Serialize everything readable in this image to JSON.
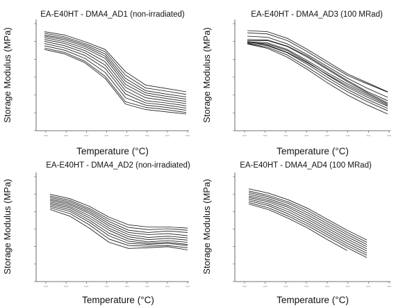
{
  "chart_data": [
    {
      "type": "line",
      "title": "EA-E40HT - DMA4_AD1 (non-irradiated)",
      "xlabel": "Temperature (°C)",
      "ylabel": "Storage Modulus (MPa)",
      "x_ticks_count": 8,
      "y_ticks_count": 7,
      "grid": false,
      "style": {
        "line_color": "#1a1a1a"
      },
      "x": [
        1,
        2,
        3,
        4,
        5,
        6,
        7,
        8
      ],
      "series": [
        {
          "values": [
            5.65,
            5.5,
            5.2,
            4.85,
            3.85,
            3.25,
            3.1,
            2.95
          ]
        },
        {
          "values": [
            5.58,
            5.42,
            5.12,
            4.75,
            3.7,
            3.12,
            2.98,
            2.83
          ]
        },
        {
          "values": [
            5.5,
            5.35,
            5.05,
            4.65,
            3.55,
            3.0,
            2.85,
            2.72
          ]
        },
        {
          "values": [
            5.45,
            5.28,
            4.98,
            4.55,
            3.42,
            2.9,
            2.75,
            2.62
          ]
        },
        {
          "values": [
            5.38,
            5.2,
            4.9,
            4.45,
            3.28,
            2.8,
            2.65,
            2.52
          ]
        },
        {
          "values": [
            5.3,
            5.12,
            4.8,
            4.3,
            3.15,
            2.68,
            2.55,
            2.42
          ]
        },
        {
          "values": [
            5.22,
            5.02,
            4.7,
            4.15,
            3.0,
            2.55,
            2.45,
            2.32
          ]
        },
        {
          "values": [
            5.12,
            4.92,
            4.58,
            4.0,
            2.85,
            2.45,
            2.35,
            2.22
          ]
        },
        {
          "values": [
            5.02,
            4.82,
            4.45,
            3.82,
            2.68,
            2.35,
            2.25,
            2.12
          ]
        },
        {
          "values": [
            4.92,
            4.72,
            4.32,
            3.65,
            2.5,
            2.25,
            2.15,
            2.02
          ]
        },
        {
          "values": [
            4.85,
            4.65,
            4.25,
            3.55,
            2.4,
            2.15,
            2.05,
            1.95
          ]
        }
      ]
    },
    {
      "type": "line",
      "title": "EA-E40HT - DMA4_AD3 (100 MRad)",
      "xlabel": "Temperature (°C)",
      "ylabel": "Storage Modulus (MPa)",
      "x_ticks_count": 8,
      "y_ticks_count": 7,
      "grid": false,
      "style": {
        "line_color": "#1a1a1a"
      },
      "x": [
        1,
        2,
        3,
        4,
        5,
        6,
        7,
        8
      ],
      "series": [
        {
          "values": [
            5.7,
            5.65,
            5.35,
            4.85,
            4.3,
            3.75,
            3.35,
            2.95
          ]
        },
        {
          "values": [
            5.6,
            5.55,
            5.25,
            4.75,
            4.2,
            3.68,
            3.3,
            2.93
          ]
        },
        {
          "values": [
            5.45,
            5.4,
            5.1,
            4.62,
            4.08,
            3.55,
            3.1,
            2.7
          ]
        },
        {
          "values": [
            5.3,
            5.28,
            5.0,
            4.55,
            4.0,
            3.45,
            2.95,
            2.55
          ]
        },
        {
          "values": [
            5.25,
            5.25,
            4.98,
            4.5,
            3.95,
            3.4,
            2.9,
            2.45
          ]
        },
        {
          "values": [
            5.2,
            5.15,
            4.85,
            4.35,
            3.8,
            3.3,
            2.85,
            2.4
          ]
        },
        {
          "values": [
            5.18,
            5.1,
            4.8,
            4.28,
            3.7,
            3.15,
            2.7,
            2.3
          ]
        },
        {
          "values": [
            5.15,
            5.02,
            4.7,
            4.18,
            3.6,
            3.05,
            2.6,
            2.2
          ]
        },
        {
          "values": [
            5.12,
            4.95,
            4.6,
            4.05,
            3.48,
            2.95,
            2.5,
            2.1
          ]
        },
        {
          "values": [
            5.1,
            4.9,
            4.5,
            3.95,
            3.35,
            2.8,
            2.35,
            1.95
          ]
        },
        {
          "values": [
            5.2,
            5.05,
            4.72,
            4.25,
            3.72,
            3.22,
            2.78,
            2.35
          ]
        }
      ]
    },
    {
      "type": "line",
      "title": "EA-E40HT - DMA4_AD2 (non-irradiated)",
      "xlabel": "Temperature (°C)",
      "ylabel": "Storage Modulus (MPa)",
      "x_ticks_count": 8,
      "y_ticks_count": 7,
      "grid": false,
      "style": {
        "line_color": "#1a1a1a"
      },
      "x": [
        1,
        2,
        3,
        4,
        5,
        6,
        7,
        8
      ],
      "series": [
        {
          "values": [
            5.2,
            5.0,
            4.65,
            4.15,
            3.8,
            3.7,
            3.7,
            3.65
          ]
        },
        {
          "values": [
            5.12,
            4.92,
            4.55,
            4.05,
            3.68,
            3.58,
            3.62,
            3.55
          ]
        },
        {
          "values": [
            5.05,
            4.85,
            4.48,
            3.95,
            3.55,
            3.45,
            3.52,
            3.45
          ]
        },
        {
          "values": [
            4.98,
            4.78,
            4.4,
            3.85,
            3.45,
            3.35,
            3.4,
            3.3
          ]
        },
        {
          "values": [
            4.92,
            4.72,
            4.32,
            3.75,
            3.35,
            3.22,
            3.28,
            3.2
          ]
        },
        {
          "values": [
            4.85,
            4.65,
            4.22,
            3.65,
            3.25,
            3.12,
            3.18,
            3.1
          ]
        },
        {
          "values": [
            4.78,
            4.58,
            4.12,
            3.55,
            3.15,
            3.02,
            3.08,
            3.0
          ]
        },
        {
          "values": [
            4.72,
            4.5,
            4.02,
            3.42,
            3.05,
            2.95,
            3.0,
            2.9
          ]
        },
        {
          "values": [
            4.65,
            4.42,
            3.92,
            3.3,
            2.95,
            2.9,
            2.95,
            2.85
          ]
        },
        {
          "values": [
            4.58,
            4.32,
            3.8,
            3.15,
            2.85,
            2.82,
            2.85,
            2.75
          ]
        },
        {
          "values": [
            4.5,
            4.2,
            3.65,
            3.0,
            2.72,
            2.75,
            2.8,
            2.65
          ]
        }
      ]
    },
    {
      "type": "line",
      "title": "EA-E40HT - DMA4_AD4 (100 MRad)",
      "xlabel": "Temperature (°C)",
      "ylabel": "Storage Modulus (MPa)",
      "x_ticks_count": 8,
      "y_ticks_count": 7,
      "grid": false,
      "style": {
        "line_color": "#1a1a1a"
      },
      "x": [
        1,
        2,
        3,
        4,
        5,
        6,
        7
      ],
      "series": [
        {
          "values": [
            5.45,
            5.25,
            4.95,
            4.55,
            4.05,
            3.55,
            3.1
          ]
        },
        {
          "values": [
            5.35,
            5.15,
            4.85,
            4.45,
            3.95,
            3.45,
            3.0
          ]
        },
        {
          "values": [
            5.28,
            5.08,
            4.78,
            4.35,
            3.85,
            3.35,
            2.9
          ]
        },
        {
          "values": [
            5.2,
            5.0,
            4.68,
            4.25,
            3.75,
            3.25,
            2.8
          ]
        },
        {
          "values": [
            5.12,
            4.92,
            4.6,
            4.15,
            3.65,
            3.15,
            2.7
          ]
        },
        {
          "values": [
            5.05,
            4.85,
            4.5,
            4.05,
            3.55,
            3.05,
            2.6
          ]
        },
        {
          "values": [
            4.98,
            4.76,
            4.4,
            3.95,
            3.45,
            2.95,
            2.5
          ]
        },
        {
          "values": [
            4.9,
            4.68,
            4.3,
            3.85,
            3.35,
            2.85,
            2.4
          ]
        },
        {
          "values": [
            4.82,
            4.58,
            4.2,
            3.75,
            3.25,
            2.75,
            2.3
          ]
        },
        {
          "values": [
            4.75,
            4.5,
            4.1,
            3.65,
            3.12,
            2.62,
            null
          ]
        }
      ]
    }
  ]
}
